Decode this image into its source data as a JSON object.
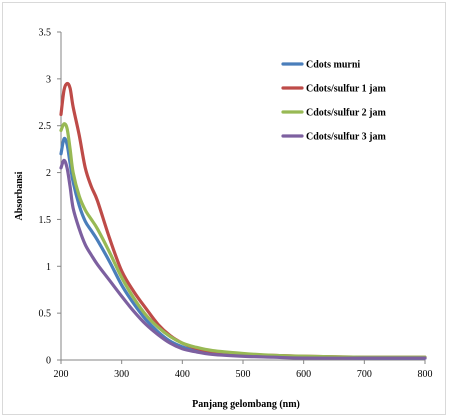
{
  "chart_data": {
    "type": "line",
    "xlabel": "Panjang gelombang (nm)",
    "ylabel": "Absorbansi",
    "xlim": [
      200,
      800
    ],
    "ylim": [
      0,
      3.5
    ],
    "xticks": [
      "200",
      "300",
      "400",
      "500",
      "600",
      "700",
      "800"
    ],
    "yticks": [
      "0",
      "0.5",
      "1",
      "1.5",
      "2",
      "2.5",
      "3",
      "3.5"
    ],
    "grid": false,
    "legend_position": "top-right",
    "series": [
      {
        "name": "Cdots murni",
        "color": "#4a7ebb",
        "x": [
          200,
          205,
          210,
          215,
          220,
          230,
          240,
          250,
          260,
          280,
          300,
          320,
          340,
          360,
          380,
          400,
          420,
          450,
          500,
          550,
          600,
          700,
          800
        ],
        "y": [
          2.2,
          2.36,
          2.3,
          2.1,
          1.9,
          1.65,
          1.48,
          1.38,
          1.28,
          1.05,
          0.8,
          0.6,
          0.43,
          0.3,
          0.2,
          0.14,
          0.1,
          0.07,
          0.05,
          0.04,
          0.03,
          0.02,
          0.02
        ]
      },
      {
        "name": "Cdots/sulfur 1 jam",
        "color": "#be4b48",
        "x": [
          200,
          205,
          210,
          215,
          220,
          230,
          240,
          250,
          260,
          280,
          300,
          320,
          340,
          360,
          380,
          400,
          420,
          450,
          500,
          550,
          600,
          700,
          800
        ],
        "y": [
          2.62,
          2.88,
          2.95,
          2.9,
          2.7,
          2.4,
          2.05,
          1.85,
          1.7,
          1.3,
          0.95,
          0.73,
          0.55,
          0.38,
          0.26,
          0.18,
          0.13,
          0.09,
          0.06,
          0.05,
          0.04,
          0.03,
          0.03
        ]
      },
      {
        "name": "Cdots/sulfur 2 jam",
        "color": "#98b954",
        "x": [
          200,
          205,
          210,
          215,
          220,
          230,
          240,
          250,
          260,
          280,
          300,
          320,
          340,
          360,
          380,
          400,
          420,
          450,
          500,
          550,
          600,
          700,
          800
        ],
        "y": [
          2.45,
          2.52,
          2.47,
          2.25,
          2.0,
          1.75,
          1.6,
          1.5,
          1.4,
          1.15,
          0.88,
          0.66,
          0.48,
          0.35,
          0.25,
          0.18,
          0.14,
          0.1,
          0.07,
          0.05,
          0.04,
          0.03,
          0.03
        ]
      },
      {
        "name": "Cdots/sulfur 3 jam",
        "color": "#7d60a0",
        "x": [
          200,
          205,
          210,
          215,
          220,
          230,
          240,
          250,
          260,
          280,
          300,
          320,
          340,
          360,
          380,
          400,
          420,
          450,
          500,
          550,
          600,
          700,
          800
        ],
        "y": [
          2.05,
          2.13,
          2.05,
          1.85,
          1.62,
          1.4,
          1.23,
          1.12,
          1.02,
          0.85,
          0.68,
          0.52,
          0.38,
          0.27,
          0.18,
          0.12,
          0.09,
          0.06,
          0.04,
          0.03,
          0.02,
          0.02,
          0.02
        ]
      }
    ]
  }
}
